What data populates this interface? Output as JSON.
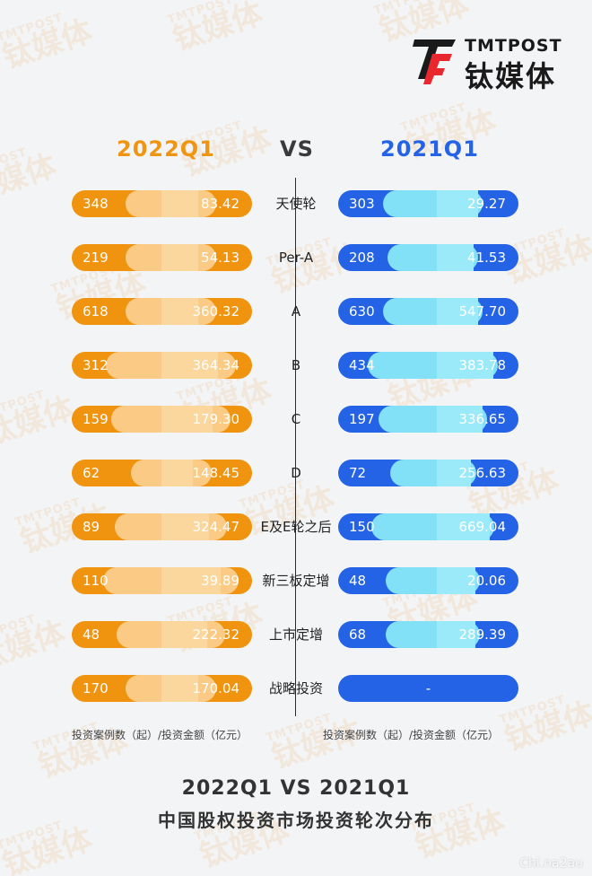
{
  "brand": {
    "en": "TMTPOST",
    "cn": "钛媒体",
    "colors": {
      "red": "#e8272f",
      "black": "#1a1a1a"
    }
  },
  "colors": {
    "left_dark": "#f0930e",
    "left_light": "#fbcb86",
    "right_dark": "#2463e6",
    "right_light": "#82e0f7"
  },
  "header": {
    "left": "2022Q1",
    "vs": "VS",
    "right": "2021Q1"
  },
  "chart_data": {
    "type": "bar",
    "title": "2022Q1 VS 2021Q1",
    "subtitle": "中国股权投资市场投资轮次分布",
    "categories": [
      "天使轮",
      "Per-A",
      "A",
      "B",
      "C",
      "D",
      "E及E轮之后",
      "新三板定增",
      "上市定增",
      "战略投资"
    ],
    "series": [
      {
        "name": "2022Q1",
        "cases": [
          348,
          219,
          618,
          312,
          159,
          62,
          89,
          110,
          48,
          170
        ],
        "amounts": [
          83.42,
          54.13,
          360.32,
          364.34,
          179.3,
          148.45,
          324.47,
          39.89,
          222.32,
          170.04
        ]
      },
      {
        "name": "2021Q1",
        "cases": [
          303,
          208,
          630,
          434,
          197,
          72,
          150,
          48,
          68,
          null
        ],
        "amounts": [
          29.27,
          41.53,
          547.7,
          383.78,
          336.65,
          256.63,
          669.04,
          20.06,
          289.39,
          null
        ]
      }
    ],
    "fill_fraction": {
      "2022Q1": [
        0.5,
        0.5,
        0.5,
        0.72,
        0.66,
        0.45,
        0.62,
        0.75,
        0.6,
        0.5
      ],
      "2021Q1": [
        0.55,
        0.5,
        0.55,
        0.72,
        0.6,
        0.48,
        0.68,
        0.52,
        0.52,
        0
      ]
    },
    "empty_marker": "-"
  },
  "rows": [
    {
      "label": "天使轮",
      "left_cases": "348",
      "left_amount": "83.42",
      "right_cases": "303",
      "right_amount": "29.27"
    },
    {
      "label": "Per-A",
      "left_cases": "219",
      "left_amount": "54.13",
      "right_cases": "208",
      "right_amount": "41.53"
    },
    {
      "label": "A",
      "left_cases": "618",
      "left_amount": "360.32",
      "right_cases": "630",
      "right_amount": "547.70"
    },
    {
      "label": "B",
      "left_cases": "312",
      "left_amount": "364.34",
      "right_cases": "434",
      "right_amount": "383.78"
    },
    {
      "label": "C",
      "left_cases": "159",
      "left_amount": "179.30",
      "right_cases": "197",
      "right_amount": "336.65"
    },
    {
      "label": "D",
      "left_cases": "62",
      "left_amount": "148.45",
      "right_cases": "72",
      "right_amount": "256.63"
    },
    {
      "label": "E及E轮之后",
      "left_cases": "89",
      "left_amount": "324.47",
      "right_cases": "150",
      "right_amount": "669.04"
    },
    {
      "label": "新三板定增",
      "left_cases": "110",
      "left_amount": "39.89",
      "right_cases": "48",
      "right_amount": "20.06"
    },
    {
      "label": "上市定增",
      "left_cases": "48",
      "left_amount": "222.32",
      "right_cases": "68",
      "right_amount": "289.39"
    },
    {
      "label": "战略投资",
      "left_cases": "170",
      "left_amount": "170.04",
      "right_cases": "",
      "right_amount": "-"
    }
  ],
  "footnote": {
    "left": "投资案例数（起）/投资金额（亿元）",
    "right": "投资案例数（起）/投资金额（亿元）"
  },
  "credit": "Chi.na2au"
}
